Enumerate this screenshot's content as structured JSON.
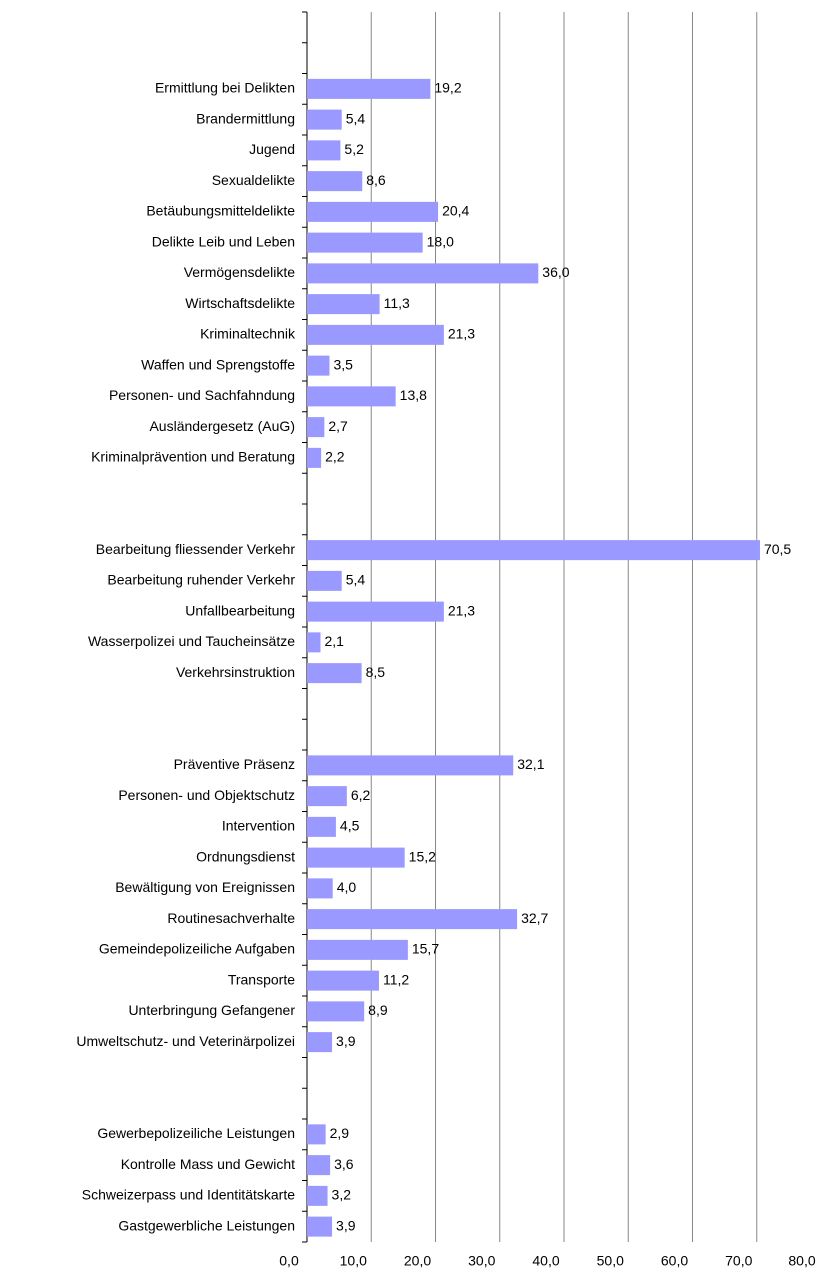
{
  "chart_data": {
    "type": "bar",
    "orientation": "horizontal",
    "color": "#9999ff",
    "grid": true,
    "categories": [
      null,
      null,
      "Ermittlung bei Delikten",
      "Brandermittlung",
      "Jugend",
      "Sexualdelikte",
      "Betäubungsmitteldelikte",
      "Delikte Leib und Leben",
      "Vermögensdelikte",
      "Wirtschaftsdelikte",
      "Kriminaltechnik",
      "Waffen und Sprengstoffe",
      "Personen- und Sachfahndung",
      "Ausländergesetz (AuG)",
      "Kriminalprävention und Beratung",
      null,
      null,
      "Bearbeitung fliessender Verkehr",
      "Bearbeitung ruhender Verkehr",
      "Unfallbearbeitung",
      "Wasserpolizei und Taucheinsätze",
      "Verkehrsinstruktion",
      null,
      null,
      "Präventive Präsenz",
      "Personen- und Objektschutz",
      "Intervention",
      "Ordnungsdienst",
      "Bewältigung von Ereignissen",
      "Routinesachverhalte",
      "Gemeindepolizeiliche Aufgaben",
      "Transporte",
      "Unterbringung Gefangener",
      "Umweltschutz- und Veterinärpolizei",
      null,
      null,
      "Gewerbepolizeiliche Leistungen",
      "Kontrolle Mass und Gewicht",
      "Schweizerpass und Identitätskarte",
      "Gastgewerbliche Leistungen"
    ],
    "values": [
      null,
      null,
      19.2,
      5.4,
      5.2,
      8.6,
      20.4,
      18.0,
      36.0,
      11.3,
      21.3,
      3.5,
      13.8,
      2.7,
      2.2,
      null,
      null,
      70.5,
      5.4,
      21.3,
      2.1,
      8.5,
      null,
      null,
      32.1,
      6.2,
      4.5,
      15.2,
      4.0,
      32.7,
      15.7,
      11.2,
      8.9,
      3.9,
      null,
      null,
      2.9,
      3.6,
      3.2,
      3.9
    ],
    "value_labels": [
      null,
      null,
      "19,2",
      "5,4",
      "5,2",
      "8,6",
      "20,4",
      "18,0",
      "36,0",
      "11,3",
      "21,3",
      "3,5",
      "13,8",
      "2,7",
      "2,2",
      null,
      null,
      "70,5",
      "5,4",
      "21,3",
      "2,1",
      "8,5",
      null,
      null,
      "32,1",
      "6,2",
      "4,5",
      "15,2",
      "4,0",
      "32,7",
      "15,7",
      "11,2",
      "8,9",
      "3,9",
      null,
      null,
      "2,9",
      "3,6",
      "3,2",
      "3,9"
    ],
    "xlim": [
      0,
      80
    ],
    "xticks": [
      {
        "value": 0,
        "label": "0,0"
      },
      {
        "value": 10,
        "label": "10,0"
      },
      {
        "value": 20,
        "label": "20,0"
      },
      {
        "value": 30,
        "label": "30,0"
      },
      {
        "value": 40,
        "label": "40,0"
      },
      {
        "value": 50,
        "label": "50,0"
      },
      {
        "value": 60,
        "label": "60,0"
      },
      {
        "value": 70,
        "label": "70,0"
      },
      {
        "value": 80,
        "label": "80,0"
      }
    ]
  }
}
